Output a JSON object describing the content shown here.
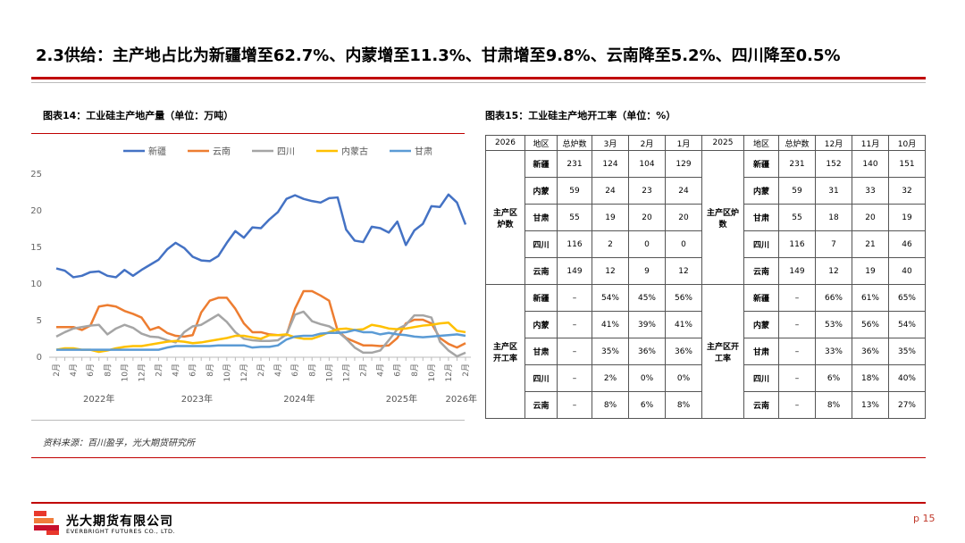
{
  "header": {
    "title": "2.3供给：主产地占比为新疆增至62.7%、内蒙增至11.3%、甘肃增至9.8%、云南降至5.2%、四川降至0.5%"
  },
  "chart_data": {
    "type": "line",
    "title": "图表14：工业硅主产地产量（单位：万吨）",
    "categories": [
      "2月",
      null,
      "4月",
      null,
      "6月",
      null,
      "8月",
      null,
      "10月",
      null,
      "12月",
      null,
      "2月",
      null,
      "4月",
      null,
      "6月",
      null,
      "8月",
      null,
      "10月",
      null,
      "12月",
      null,
      "2月",
      null,
      "4月",
      null,
      "6月",
      null,
      "8月",
      null,
      "10月",
      null,
      "12月",
      null,
      "2月",
      null,
      "4月",
      null,
      "6月",
      null,
      "8月",
      null,
      "10月",
      null,
      "12月",
      null,
      "2月"
    ],
    "year_labels": [
      "2022年",
      "2023年",
      "2024年",
      "2025年",
      "2026年"
    ],
    "series": [
      {
        "name": "新疆",
        "color": "#4472c4",
        "values": [
          12,
          11.7,
          10.8,
          11,
          11.5,
          11.6,
          11,
          10.8,
          11.8,
          11,
          11.8,
          12.5,
          13.2,
          14.6,
          15.5,
          14.8,
          13.6,
          13.1,
          13,
          13.7,
          15.5,
          17.1,
          16.2,
          17.6,
          17.5,
          18.7,
          19.7,
          21.5,
          22,
          21.5,
          21.2,
          21,
          21.6,
          21.7,
          17.3,
          15.8,
          15.6,
          17.7,
          17.5,
          16.9,
          18.4,
          15.2,
          17.2,
          18.1,
          20.5,
          20.4,
          22.1,
          21,
          18
        ]
      },
      {
        "name": "云南",
        "color": "#ed7d31",
        "values": [
          4,
          4,
          4,
          3.6,
          4.2,
          6.8,
          7,
          6.8,
          6.2,
          5.8,
          5.3,
          3.6,
          4,
          3.2,
          2.8,
          2.7,
          2.9,
          6,
          7.6,
          8,
          8,
          6.5,
          4.5,
          3.3,
          3.3,
          3,
          2.9,
          2.9,
          6.5,
          8.9,
          8.9,
          8.3,
          7.6,
          3.5,
          2.5,
          2,
          1.5,
          1.5,
          1.4,
          1.5,
          2.5,
          4.5,
          5,
          5,
          4.5,
          2.5,
          1.7,
          1.2,
          1.8
        ]
      },
      {
        "name": "四川",
        "color": "#a5a5a5",
        "values": [
          2.7,
          3.3,
          3.8,
          4,
          4.2,
          4.3,
          3,
          3.8,
          4.3,
          3.9,
          3.1,
          2.7,
          2.6,
          2.2,
          1.9,
          3.3,
          4.1,
          4.3,
          5,
          5.7,
          4.7,
          3.3,
          2.4,
          2.2,
          2.1,
          2.1,
          2.2,
          3,
          5.7,
          6.1,
          4.8,
          4.4,
          4.1,
          3.4,
          2.4,
          1.2,
          0.5,
          0.5,
          0.8,
          2.2,
          3.7,
          4.3,
          5.6,
          5.6,
          5.3,
          2,
          0.8,
          0,
          0.5
        ]
      },
      {
        "name": "内蒙古",
        "color": "#ffc000",
        "values": [
          0.9,
          1.1,
          1.1,
          0.9,
          0.9,
          0.6,
          0.8,
          1.1,
          1.3,
          1.4,
          1.4,
          1.6,
          1.8,
          2,
          2.1,
          2,
          1.8,
          1.9,
          2.1,
          2.3,
          2.5,
          2.8,
          2.8,
          2.6,
          2.4,
          2.9,
          2.9,
          3,
          2.6,
          2.4,
          2.4,
          2.8,
          3.3,
          3.7,
          3.8,
          3.6,
          3.7,
          4.3,
          4.1,
          3.8,
          3.7,
          3.8,
          4,
          4.2,
          4.3,
          4.5,
          4.6,
          3.5,
          3.3
        ]
      },
      {
        "name": "甘肃",
        "color": "#5b9bd5",
        "values": [
          0.9,
          0.9,
          0.9,
          0.9,
          0.9,
          0.9,
          0.9,
          0.9,
          0.9,
          0.9,
          0.9,
          0.9,
          0.9,
          1.2,
          1.4,
          1.4,
          1.4,
          1.4,
          1.4,
          1.5,
          1.5,
          1.5,
          1.5,
          1.2,
          1.3,
          1.3,
          1.5,
          2.3,
          2.7,
          2.8,
          2.8,
          3.1,
          3.2,
          3.2,
          3.3,
          3.6,
          3.3,
          3.3,
          3,
          3.2,
          3,
          2.9,
          2.7,
          2.6,
          2.7,
          2.8,
          2.9,
          3,
          2.8
        ]
      }
    ],
    "ylim": [
      0,
      25
    ],
    "yticks": [
      0,
      5,
      10,
      15,
      20,
      25
    ],
    "grid": false,
    "legend": "top"
  },
  "table": {
    "title": "图表15：工业硅主产地开工率（单位：%）",
    "header": [
      "2026",
      "地区",
      "总炉数",
      "3月",
      "2月",
      "1月",
      "2025",
      "地区",
      "总炉数",
      "12月",
      "11月",
      "10月"
    ],
    "groups": [
      {
        "label_left": "主产区炉数",
        "label_right": "主产区炉数",
        "rows": [
          [
            "新疆",
            "231",
            "124",
            "104",
            "129",
            "新疆",
            "231",
            "152",
            "140",
            "151"
          ],
          [
            "内蒙",
            "59",
            "24",
            "23",
            "24",
            "内蒙",
            "59",
            "31",
            "33",
            "32"
          ],
          [
            "甘肃",
            "55",
            "19",
            "20",
            "20",
            "甘肃",
            "55",
            "18",
            "20",
            "19"
          ],
          [
            "四川",
            "116",
            "2",
            "0",
            "0",
            "四川",
            "116",
            "7",
            "21",
            "46"
          ],
          [
            "云南",
            "149",
            "12",
            "9",
            "12",
            "云南",
            "149",
            "12",
            "19",
            "40"
          ]
        ]
      },
      {
        "label_left": "主产区开工率",
        "label_right": "主产区开工率",
        "rows": [
          [
            "新疆",
            "–",
            "54%",
            "45%",
            "56%",
            "新疆",
            "–",
            "66%",
            "61%",
            "65%"
          ],
          [
            "内蒙",
            "–",
            "41%",
            "39%",
            "41%",
            "内蒙",
            "–",
            "53%",
            "56%",
            "54%"
          ],
          [
            "甘肃",
            "–",
            "35%",
            "36%",
            "36%",
            "甘肃",
            "–",
            "33%",
            "36%",
            "35%"
          ],
          [
            "四川",
            "–",
            "2%",
            "0%",
            "0%",
            "四川",
            "–",
            "6%",
            "18%",
            "40%"
          ],
          [
            "云南",
            "–",
            "8%",
            "6%",
            "8%",
            "云南",
            "–",
            "8%",
            "13%",
            "27%"
          ]
        ]
      }
    ]
  },
  "source": "资料来源：百川盈孚，光大期货研究所",
  "footer": {
    "company": "光大期货有限公司",
    "company_en": "EVERBRIGHT FUTURES CO., LTD.",
    "page": "p 15"
  }
}
